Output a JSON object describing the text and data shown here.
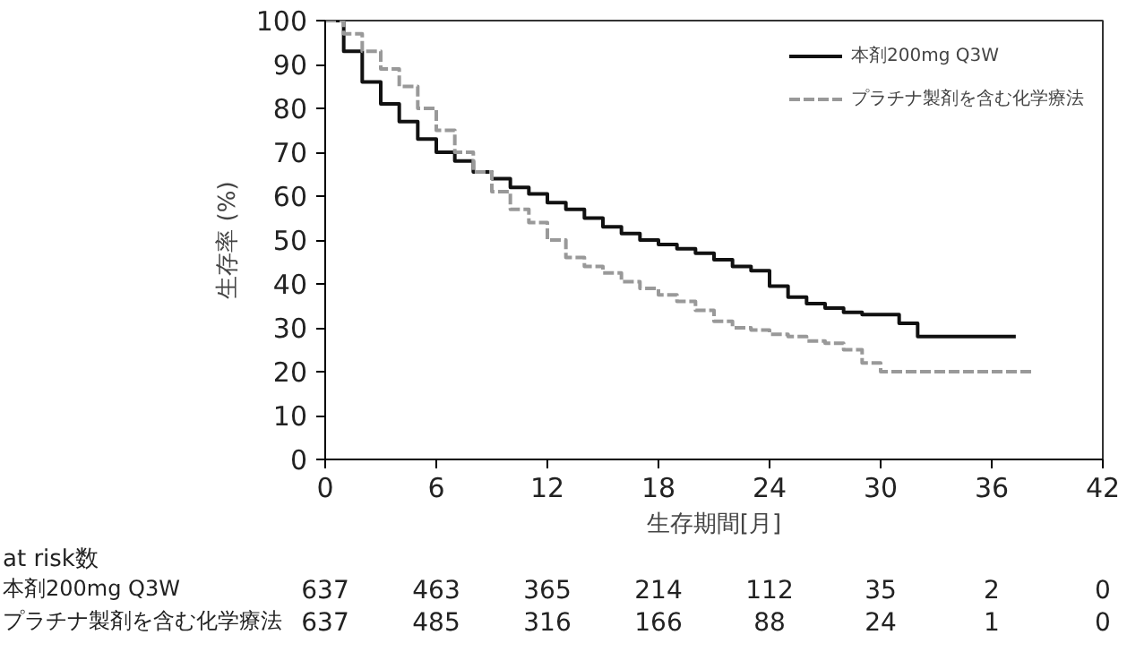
{
  "chart_data": {
    "type": "step",
    "ylabel": "生存率 (%)",
    "xlabel": "生存期間[月]",
    "xlim": [
      0,
      42
    ],
    "xticks": [
      0,
      6,
      12,
      18,
      24,
      30,
      36,
      42
    ],
    "ylim": [
      0,
      100
    ],
    "yticks": [
      0,
      10,
      20,
      30,
      40,
      50,
      60,
      70,
      80,
      90,
      100
    ],
    "grid": false,
    "legend": "top right",
    "series": [
      {
        "name": "本剤200mg Q3W",
        "color": "#111111",
        "line_style": "solid",
        "x": [
          0,
          1,
          2,
          3,
          4,
          5,
          6,
          7,
          8,
          9,
          10,
          11,
          12,
          13,
          14,
          15,
          16,
          17,
          18,
          19,
          20,
          21,
          22,
          23,
          24,
          25,
          26,
          27,
          28,
          29,
          30,
          31,
          32,
          37.3
        ],
        "values": [
          100,
          93,
          86,
          81,
          77,
          73,
          70,
          68,
          65.5,
          64,
          62,
          60.5,
          58.5,
          57,
          55,
          53,
          51.5,
          50,
          49,
          48,
          47,
          45.5,
          44,
          43,
          39.5,
          37,
          35.5,
          34.5,
          33.5,
          33,
          33,
          31,
          28,
          28
        ]
      },
      {
        "name": "プラチナ製剤を含む化学療法",
        "color": "#999999",
        "line_style": "dashed",
        "x": [
          0,
          1,
          2,
          3,
          4,
          5,
          6,
          7,
          8,
          9,
          10,
          11,
          12,
          13,
          14,
          15,
          16,
          17,
          18,
          19,
          20,
          21,
          22,
          23,
          24,
          25,
          26,
          27,
          28,
          29,
          30,
          31,
          38.3
        ],
        "values": [
          100,
          97,
          93,
          89,
          85,
          80,
          75,
          70,
          65.5,
          61,
          57,
          54,
          50,
          46,
          44,
          42.5,
          40.5,
          39,
          37.5,
          36,
          34,
          31.5,
          30,
          29.5,
          28.5,
          28,
          27,
          26.5,
          25,
          22,
          20,
          20,
          20
        ]
      }
    ],
    "annotations": [
      "at risk数",
      "本剤200mg Q3W",
      "637",
      "463",
      "365",
      "214",
      "112",
      "35",
      "2",
      "0",
      "プラチナ製剤を含む化学療法",
      "637",
      "485",
      "316",
      "166",
      "88",
      "24",
      "1",
      "0"
    ]
  }
}
